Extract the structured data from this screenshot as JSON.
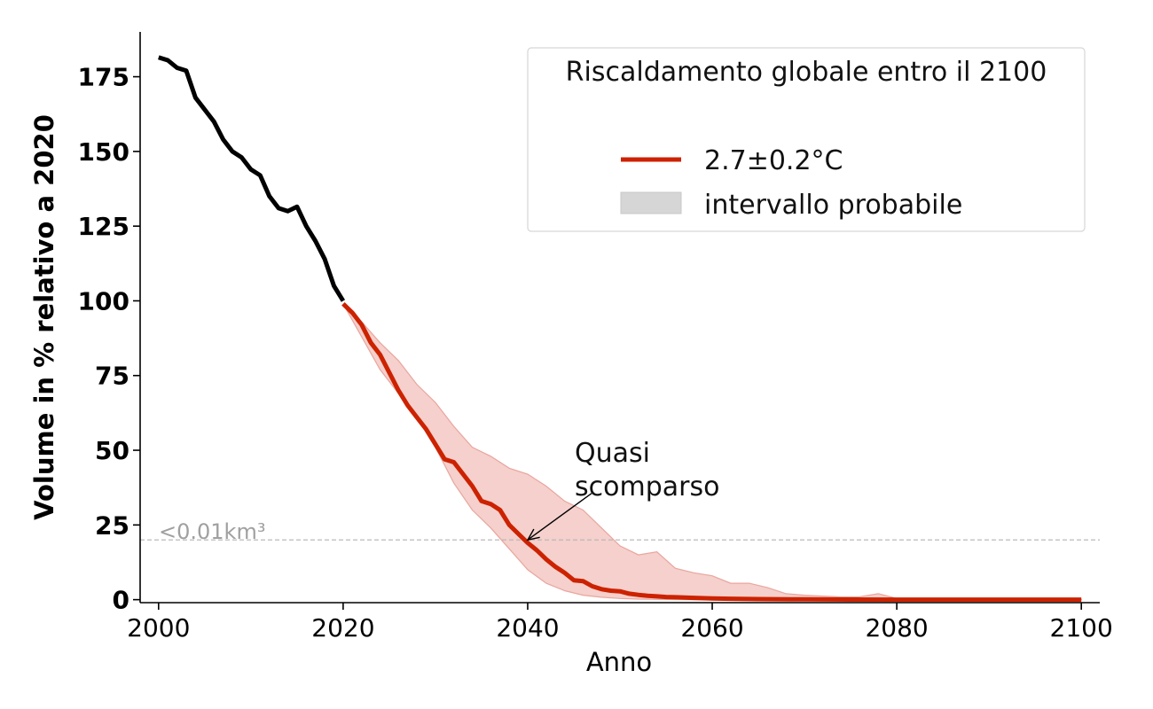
{
  "chart_data": {
    "type": "line",
    "xlabel": "Anno",
    "ylabel": "Volume in % relativo a 2020",
    "xlim": [
      1998,
      2102
    ],
    "ylim": [
      -1,
      190
    ],
    "xticks": [
      2000,
      2020,
      2040,
      2060,
      2080,
      2100
    ],
    "yticks": [
      0,
      25,
      50,
      75,
      100,
      125,
      150,
      175
    ],
    "grid": false,
    "legend": {
      "title": "Riscaldamento globale entro il 2100",
      "placement": "top-right",
      "entries": [
        "2.7±0.2°C",
        "intervallo probabile"
      ]
    },
    "annotation": {
      "text_line1": "Quasi",
      "text_line2": "scomparso",
      "point": [
        2040,
        20
      ],
      "text_at": [
        2045,
        43
      ]
    },
    "threshold": {
      "label": "<0.01km³",
      "y": 20
    },
    "series": [
      {
        "color": "#000000",
        "x": [
          2000,
          2001,
          2002,
          2003,
          2004,
          2005,
          2006,
          2007,
          2008,
          2009,
          2010,
          2011,
          2012,
          2013,
          2014,
          2015,
          2016,
          2017,
          2018,
          2019,
          2020
        ],
        "y": [
          181.5,
          180.5,
          178,
          177,
          168,
          164,
          160,
          154,
          150,
          148,
          144,
          142,
          135,
          131,
          130,
          131.5,
          125,
          120,
          114,
          105,
          100
        ]
      },
      {
        "name": "2.7±0.2°C",
        "color": "#cc2200",
        "x": [
          2020,
          2021,
          2022,
          2023,
          2024,
          2025,
          2026,
          2027,
          2028,
          2029,
          2030,
          2031,
          2032,
          2033,
          2034,
          2035,
          2036,
          2037,
          2038,
          2039,
          2040,
          2041,
          2042,
          2043,
          2044,
          2045,
          2046,
          2047,
          2048,
          2049,
          2050,
          2051,
          2052,
          2053,
          2054,
          2055,
          2056,
          2058,
          2060,
          2062,
          2065,
          2070,
          2075,
          2080,
          2085,
          2090,
          2095,
          2100
        ],
        "y": [
          99,
          96,
          92,
          86,
          82,
          76,
          70,
          65,
          61,
          57,
          52,
          47,
          46,
          42,
          38,
          33,
          32,
          30,
          25,
          22,
          19,
          16.5,
          13.5,
          11,
          9,
          6.5,
          6.2,
          4.5,
          3.5,
          3,
          2.8,
          2,
          1.6,
          1.3,
          1.1,
          0.9,
          0.8,
          0.6,
          0.4,
          0.3,
          0.2,
          0.1,
          0.05,
          0.02,
          0.01,
          0,
          0,
          0
        ]
      }
    ],
    "band": {
      "name": "intervallo probabile",
      "color": "#f3c4bf",
      "x": [
        2020,
        2022,
        2024,
        2026,
        2028,
        2030,
        2032,
        2034,
        2036,
        2038,
        2040,
        2042,
        2044,
        2046,
        2048,
        2050,
        2052,
        2054,
        2056,
        2058,
        2060,
        2062,
        2064,
        2066,
        2068,
        2070,
        2072,
        2074,
        2076,
        2078,
        2080,
        2085,
        2090,
        2095,
        2100
      ],
      "upper": [
        99,
        93,
        86,
        80,
        72,
        66,
        58,
        51,
        48,
        44,
        42,
        38,
        33,
        30,
        24,
        18,
        15,
        16,
        10.5,
        9,
        8,
        5.5,
        5.5,
        4,
        2,
        1.5,
        1.2,
        0.9,
        1,
        2,
        0.4,
        0.2,
        0.1,
        0.1,
        0.1
      ],
      "lower": [
        99,
        88,
        77,
        69,
        61,
        51,
        39,
        30,
        24,
        17,
        10,
        5.5,
        3,
        1.5,
        0.8,
        0.4,
        0.2,
        0.1,
        0.05,
        0,
        0,
        0,
        0,
        0,
        0,
        0,
        0,
        0,
        0,
        0,
        0,
        0,
        0,
        0,
        0
      ]
    }
  }
}
